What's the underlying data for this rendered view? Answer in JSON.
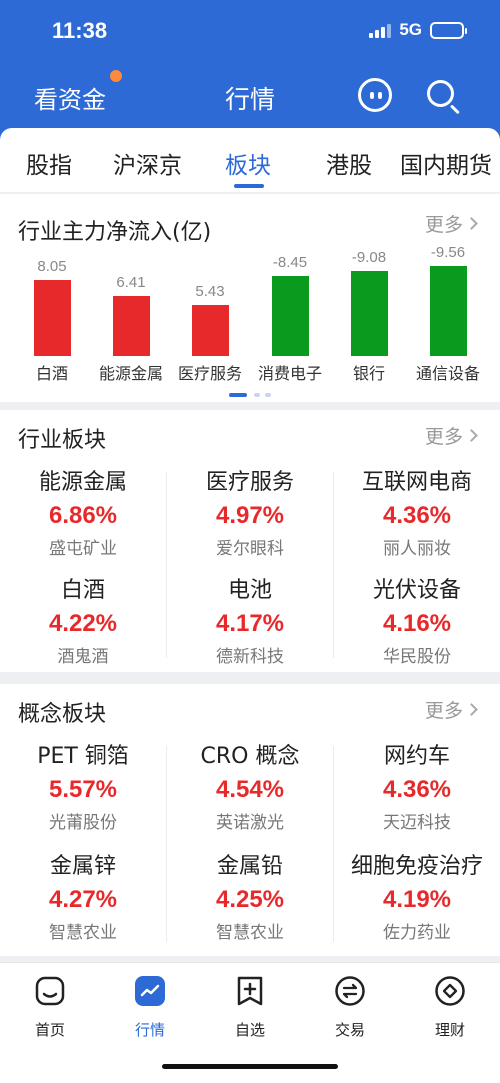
{
  "status_bar": {
    "time": "11:38",
    "network": "5G"
  },
  "nav": {
    "left_label": "看资金",
    "title": "行情"
  },
  "tabs": [
    "股指",
    "沪深京",
    "板块",
    "港股",
    "国内期货"
  ],
  "active_tab": "板块",
  "flow_card": {
    "title": "行业主力净流入(亿)",
    "more": "更多"
  },
  "chart_data": {
    "type": "bar",
    "title": "行业主力净流入(亿)",
    "categories": [
      "白酒",
      "能源金属",
      "医疗服务",
      "消费电子",
      "银行",
      "通信设备"
    ],
    "values": [
      8.05,
      6.41,
      5.43,
      -8.45,
      -9.08,
      -9.56
    ],
    "value_labels": [
      "8.05",
      "6.41",
      "5.43",
      "-8.45",
      "-9.08",
      "-9.56"
    ],
    "colors": {
      "positive": "#e8292b",
      "negative": "#0a9b1e"
    }
  },
  "industry_card": {
    "title": "行业板块",
    "more": "更多",
    "items": [
      {
        "name": "能源金属",
        "pct": "6.86%",
        "leader": "盛屯矿业"
      },
      {
        "name": "医疗服务",
        "pct": "4.97%",
        "leader": "爱尔眼科"
      },
      {
        "name": "互联网电商",
        "pct": "4.36%",
        "leader": "丽人丽妆"
      },
      {
        "name": "白酒",
        "pct": "4.22%",
        "leader": "酒鬼酒"
      },
      {
        "name": "电池",
        "pct": "4.17%",
        "leader": "德新科技"
      },
      {
        "name": "光伏设备",
        "pct": "4.16%",
        "leader": "华民股份"
      }
    ]
  },
  "concept_card": {
    "title": "概念板块",
    "more": "更多",
    "items": [
      {
        "name": "PET 铜箔",
        "pct": "5.57%",
        "leader": "光莆股份"
      },
      {
        "name": "CRO 概念",
        "pct": "4.54%",
        "leader": "英诺激光"
      },
      {
        "name": "网约车",
        "pct": "4.36%",
        "leader": "天迈科技"
      },
      {
        "name": "金属锌",
        "pct": "4.27%",
        "leader": "智慧农业"
      },
      {
        "name": "金属铅",
        "pct": "4.25%",
        "leader": "智慧农业"
      },
      {
        "name": "细胞免疫治疗",
        "pct": "4.19%",
        "leader": "佐力药业"
      }
    ]
  },
  "bottom_nav": {
    "items": [
      {
        "label": "首页",
        "icon": "home-icon"
      },
      {
        "label": "行情",
        "icon": "market-icon"
      },
      {
        "label": "自选",
        "icon": "watchlist-icon"
      },
      {
        "label": "交易",
        "icon": "trade-icon"
      },
      {
        "label": "理财",
        "icon": "wealth-icon"
      }
    ],
    "active": "行情"
  },
  "colors": {
    "brand": "#2d6ad6",
    "up": "#e8292b",
    "down": "#0a9b1e"
  }
}
